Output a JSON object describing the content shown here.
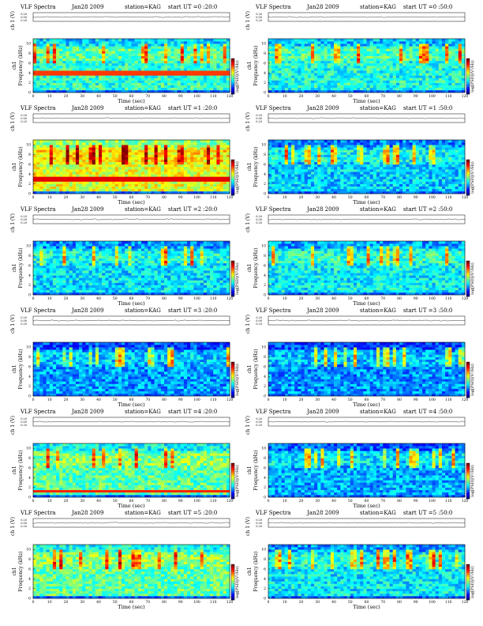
{
  "chart_data": {
    "type": "heatmap",
    "description_series": "VLF spectrogram panels",
    "header_title": "VLF Spectra",
    "date": "Jan28 2009",
    "station": "station=KAG",
    "ch_label": "ch 1 (V)",
    "ch_ticks": [
      "0.20",
      "0.00",
      "0.20"
    ],
    "ylabel": "Frequency (kHz)",
    "ylabel_prefix": "ch1",
    "xlabel": "Time (sec)",
    "colorbar_label": "log[PSD](V²/Hz)",
    "x_ticks": [
      0,
      10,
      20,
      30,
      40,
      50,
      60,
      70,
      80,
      90,
      100,
      110,
      120
    ],
    "y_ticks": [
      0,
      2,
      4,
      6,
      8,
      10
    ],
    "xlim": [
      0,
      120
    ],
    "ylim": [
      0,
      11
    ],
    "panels": [
      {
        "start": "start  UT =0 :20:0",
        "col": 0,
        "row": 0,
        "base": 0.42,
        "bright": 0.62,
        "band": 4.0
      },
      {
        "start": "start  UT =0 :50:0",
        "col": 1,
        "row": 0,
        "base": 0.4,
        "bright": 0.6,
        "band": null
      },
      {
        "start": "start  UT =1 :20:0",
        "col": 0,
        "row": 1,
        "base": 0.6,
        "bright": 0.7,
        "band": 3.0
      },
      {
        "start": "start  UT =1 :50:0",
        "col": 1,
        "row": 1,
        "base": 0.33,
        "bright": 0.62,
        "band": null
      },
      {
        "start": "start  UT =2 :20:0",
        "col": 0,
        "row": 2,
        "base": 0.35,
        "bright": 0.58,
        "band": null
      },
      {
        "start": "start  UT =2 :50:0",
        "col": 1,
        "row": 2,
        "base": 0.37,
        "bright": 0.62,
        "band": null
      },
      {
        "start": "start  UT =3 :20:0",
        "col": 0,
        "row": 3,
        "base": 0.28,
        "bright": 0.6,
        "band": null
      },
      {
        "start": "start  UT =3 :50:0",
        "col": 1,
        "row": 3,
        "base": 0.27,
        "bright": 0.6,
        "band": null
      },
      {
        "start": "start  UT =4 :20:0",
        "col": 0,
        "row": 4,
        "base": 0.46,
        "bright": 0.64,
        "band": 1.2
      },
      {
        "start": "start  UT =4 :50:0",
        "col": 1,
        "row": 4,
        "base": 0.3,
        "bright": 0.6,
        "band": null
      },
      {
        "start": "start  UT =5 :20:0",
        "col": 0,
        "row": 5,
        "base": 0.47,
        "bright": 0.64,
        "band": null
      },
      {
        "start": "start  UT =5 :50:0",
        "col": 1,
        "row": 5,
        "base": 0.36,
        "bright": 0.62,
        "band": null
      }
    ],
    "grid": false
  }
}
